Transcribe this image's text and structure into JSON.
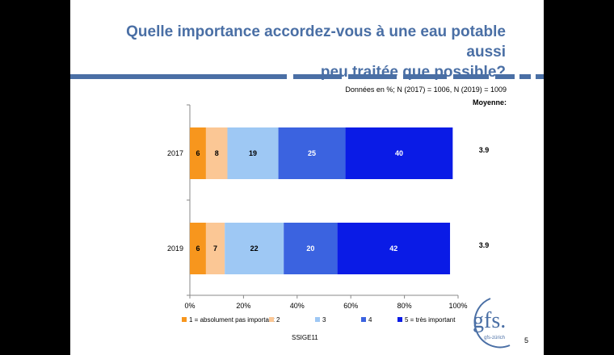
{
  "slide": {
    "title_line1": "Quelle importance accordez-vous à une eau potable aussi",
    "title_line2": "peu traitée que possible?",
    "note": "Données en %; N (2017) = 1006, N (2019) = 1009",
    "mean_header": "Moyenne:",
    "footer": "SSIGE11",
    "page_number": "5",
    "logo_text": "gfs.",
    "logo_subtext": "gfs-zürich",
    "title_color": "#4a6fa5"
  },
  "chart_data": {
    "type": "bar",
    "orientation": "horizontal",
    "stacked": true,
    "percent": true,
    "categories": [
      "2017",
      "2019"
    ],
    "series": [
      {
        "name": "1 = absolument pas important",
        "color": "#f7961d",
        "values": [
          6,
          6
        ]
      },
      {
        "name": "2",
        "color": "#fbc795",
        "values": [
          8,
          7
        ]
      },
      {
        "name": "3",
        "color": "#9ec8f4",
        "values": [
          19,
          22
        ]
      },
      {
        "name": "4",
        "color": "#3b63e0",
        "values": [
          25,
          20
        ]
      },
      {
        "name": "5 = très important",
        "color": "#0a1be6",
        "values": [
          40,
          42
        ]
      }
    ],
    "means": [
      "3.9",
      "3.9"
    ],
    "xlim": [
      0,
      100
    ],
    "xticks": [
      "0%",
      "20%",
      "40%",
      "60%",
      "80%",
      "100%"
    ],
    "grid": false,
    "legend": "bottom"
  }
}
